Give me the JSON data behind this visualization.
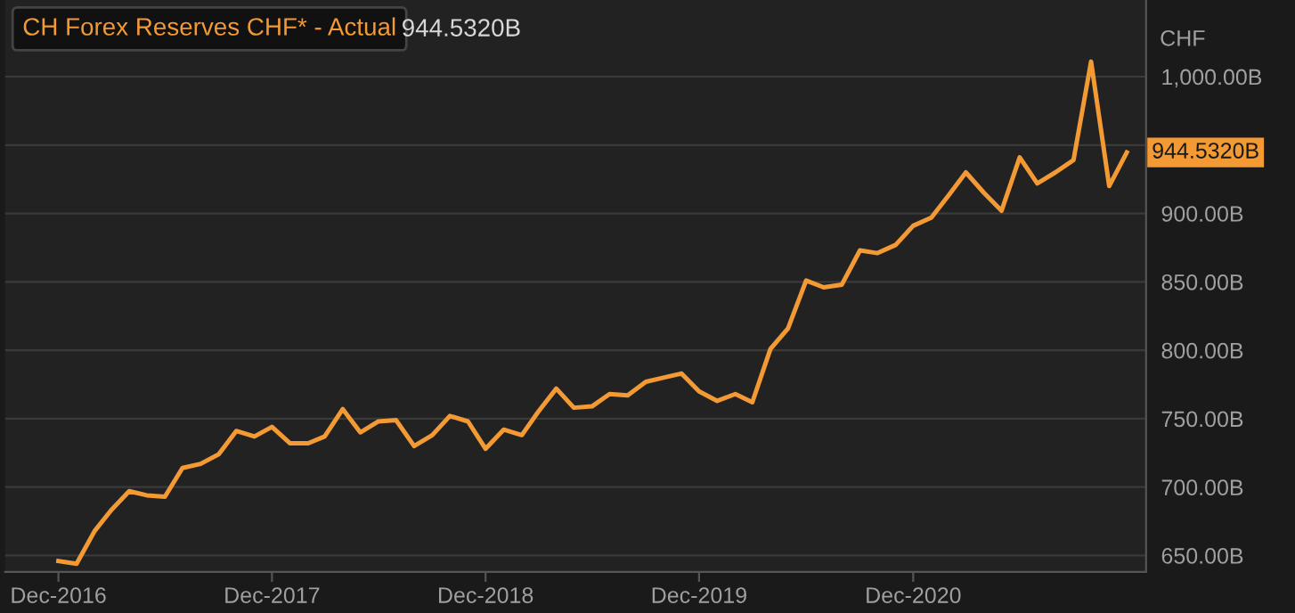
{
  "chart_data": {
    "type": "line",
    "x": [
      "2016-12",
      "2017-01",
      "2017-02",
      "2017-03",
      "2017-04",
      "2017-05",
      "2017-06",
      "2017-07",
      "2017-08",
      "2017-09",
      "2017-10",
      "2017-11",
      "2017-12",
      "2018-01",
      "2018-02",
      "2018-03",
      "2018-04",
      "2018-05",
      "2018-06",
      "2018-07",
      "2018-08",
      "2018-09",
      "2018-10",
      "2018-11",
      "2018-12",
      "2019-01",
      "2019-02",
      "2019-03",
      "2019-04",
      "2019-05",
      "2019-06",
      "2019-07",
      "2019-08",
      "2019-09",
      "2019-10",
      "2019-11",
      "2019-12",
      "2020-01",
      "2020-02",
      "2020-03",
      "2020-04",
      "2020-05",
      "2020-06",
      "2020-07",
      "2020-08",
      "2020-09",
      "2020-10",
      "2020-11",
      "2020-12",
      "2021-01",
      "2021-02",
      "2021-03",
      "2021-04",
      "2021-05",
      "2021-06",
      "2021-07",
      "2021-08",
      "2021-09",
      "2021-10",
      "2021-11",
      "2021-12"
    ],
    "series": [
      {
        "name": "CH Forex Reserves CHF* - Actual",
        "color": "#f39a35",
        "values": [
          646,
          644,
          668,
          683,
          697,
          694,
          693,
          714,
          717,
          724,
          741,
          737,
          744,
          732,
          732,
          737,
          757,
          740,
          748,
          749,
          730,
          738,
          752,
          748,
          728,
          742,
          738,
          755,
          772,
          758,
          759,
          768,
          767,
          777,
          780,
          783,
          770,
          763,
          768,
          762,
          801,
          816,
          851,
          846,
          848,
          873,
          871,
          877,
          891,
          897,
          914,
          930,
          915,
          902,
          941,
          922,
          930,
          939,
          1011,
          920,
          944.532
        ]
      }
    ],
    "ylabel": "CHF",
    "annotations": [
      "944.5320B",
      {
        "text": "944.5320B",
        "x": "2021-12",
        "y": 944.532
      }
    ],
    "xlim": [
      "2016-09-01",
      "2022-01-03"
    ],
    "xticks": [
      {
        "value": "2016-12-01",
        "label": "Dec-2016"
      },
      {
        "value": "2017-12-01",
        "label": "Dec-2017"
      },
      {
        "value": "2018-12-01",
        "label": "Dec-2018"
      },
      {
        "value": "2019-12-01",
        "label": "Dec-2019"
      },
      {
        "value": "2020-12-01",
        "label": "Dec-2020"
      }
    ],
    "ylim": [
      638,
      1056
    ],
    "yticks": [
      {
        "value": 650,
        "label": "650.00B"
      },
      {
        "value": 700,
        "label": "700.00B"
      },
      {
        "value": 750,
        "label": "750.00B"
      },
      {
        "value": 800,
        "label": "800.00B"
      },
      {
        "value": 850,
        "label": "850.00B"
      },
      {
        "value": 900,
        "label": "900.00B"
      },
      {
        "value": 950,
        "label": null
      },
      {
        "value": 1000,
        "label": "1,000.00B"
      }
    ],
    "grid": "y",
    "legend": "top left",
    "marker": "none",
    "line_style": "solid"
  }
}
